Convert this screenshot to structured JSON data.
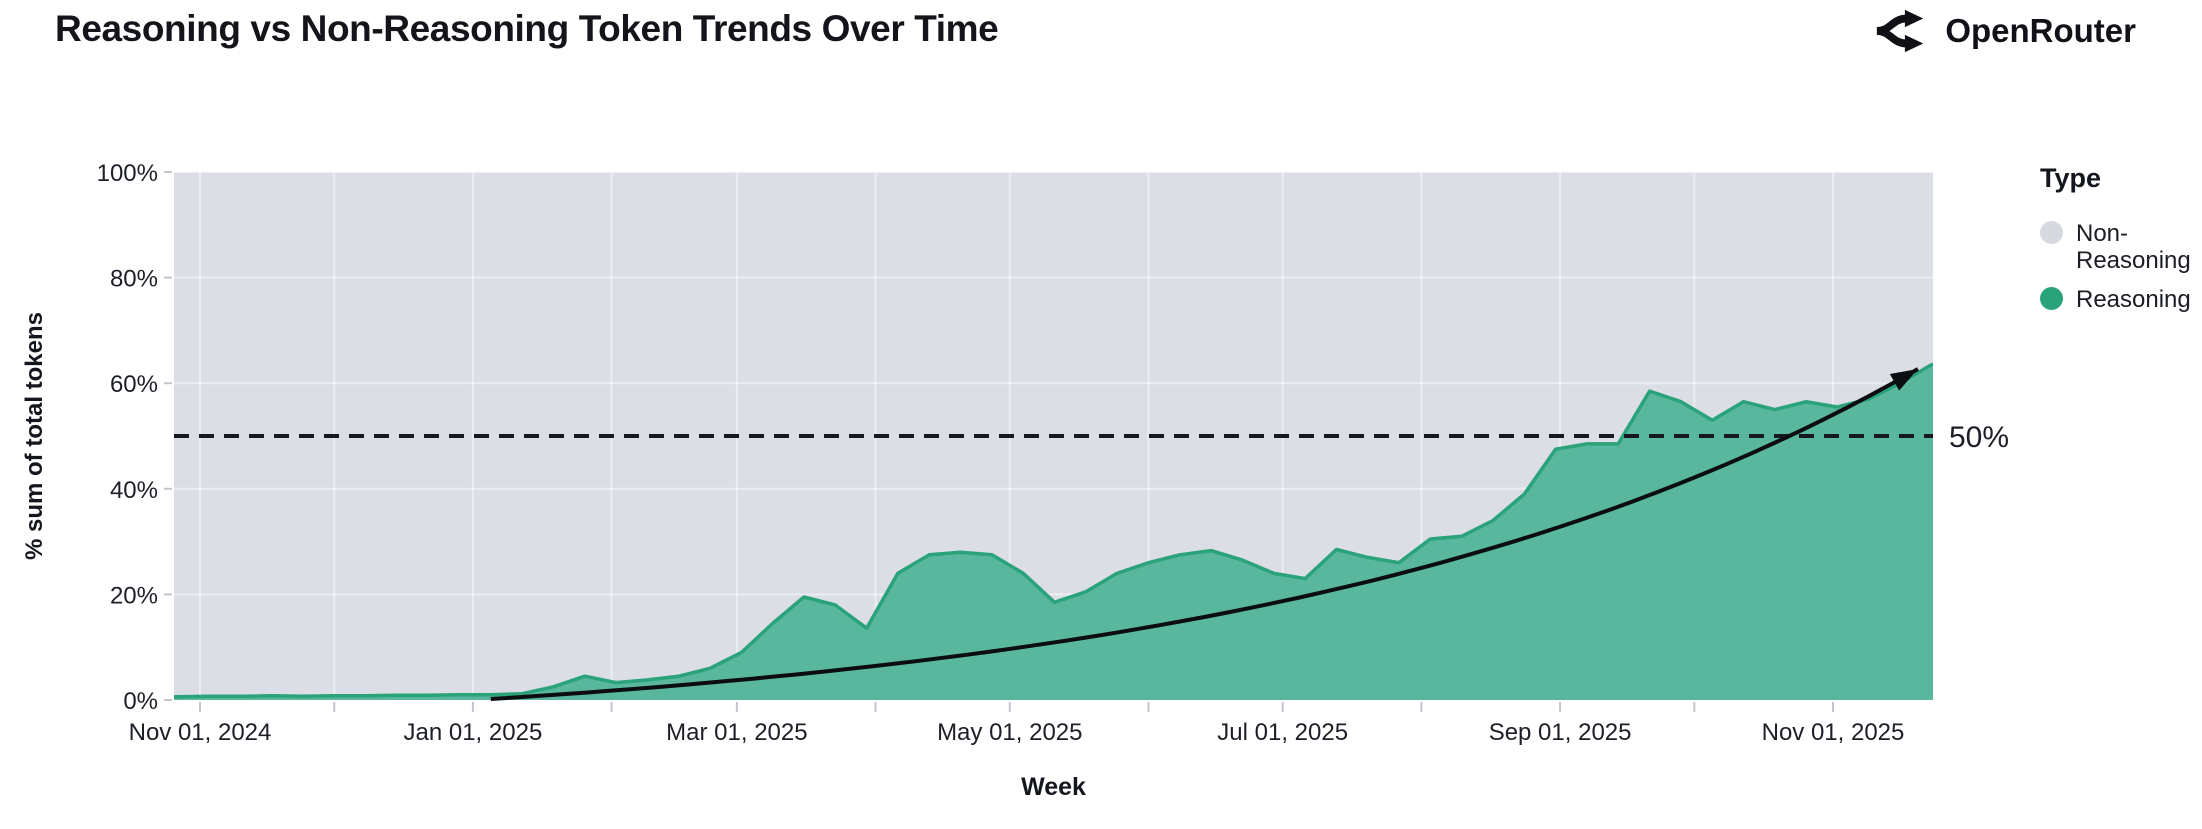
{
  "header": {
    "title": "Reasoning vs Non-Reasoning Token Trends Over Time",
    "brand": "OpenRouter"
  },
  "legend": {
    "title": "Type",
    "items": [
      {
        "label": "Non-Reasoning",
        "color": "#d6d9e0"
      },
      {
        "label": "Reasoning",
        "color": "#2aa27a"
      }
    ]
  },
  "reference_label": "50%",
  "colors": {
    "plot_background": "#dbdee5",
    "reasoning_fill": "#58b79d",
    "reasoning_line": "#2aa27a",
    "non_reasoning": "#d6d9e0",
    "ink": "#14171d",
    "grid": "rgba(255,255,255,0.45)",
    "tick": "#c3c6cd",
    "label": "#1c1f27"
  },
  "chart_data": {
    "type": "area",
    "stacked_to_100_percent": true,
    "title": "Reasoning vs Non-Reasoning Token Trends Over Time",
    "xlabel": "Week",
    "ylabel": "% sum of total tokens",
    "ylim": [
      0,
      100
    ],
    "y_ticks_pct": [
      0,
      20,
      40,
      60,
      80,
      100
    ],
    "y_tick_labels": [
      "0%",
      "20%",
      "40%",
      "60%",
      "80%",
      "100%"
    ],
    "x_ticks": [
      {
        "date": "2024-11-01",
        "label": "Nov 01, 2024"
      },
      {
        "date": "2025-01-01",
        "label": "Jan 01, 2025"
      },
      {
        "date": "2025-03-01",
        "label": "Mar 01, 2025"
      },
      {
        "date": "2025-05-01",
        "label": "May 01, 2025"
      },
      {
        "date": "2025-07-01",
        "label": "Jul 01, 2025"
      },
      {
        "date": "2025-09-01",
        "label": "Sep 01, 2025"
      },
      {
        "date": "2025-11-01",
        "label": "Nov 01, 2025"
      }
    ],
    "x_minor_tick_dates": [
      "2024-11-01",
      "2024-12-01",
      "2025-01-01",
      "2025-02-01",
      "2025-03-01",
      "2025-04-01",
      "2025-05-01",
      "2025-06-01",
      "2025-07-01",
      "2025-08-01",
      "2025-09-01",
      "2025-10-01",
      "2025-11-01"
    ],
    "legend_position": "right",
    "grid": true,
    "series_names": [
      "Non-Reasoning",
      "Reasoning"
    ],
    "weeks": [
      "2024-10-27",
      "2024-11-03",
      "2024-11-10",
      "2024-11-17",
      "2024-11-24",
      "2024-12-01",
      "2024-12-08",
      "2024-12-15",
      "2024-12-22",
      "2024-12-29",
      "2025-01-05",
      "2025-01-12",
      "2025-01-19",
      "2025-01-26",
      "2025-02-02",
      "2025-02-09",
      "2025-02-16",
      "2025-02-23",
      "2025-03-02",
      "2025-03-09",
      "2025-03-16",
      "2025-03-23",
      "2025-03-30",
      "2025-04-06",
      "2025-04-13",
      "2025-04-20",
      "2025-04-27",
      "2025-05-04",
      "2025-05-11",
      "2025-05-18",
      "2025-05-25",
      "2025-06-01",
      "2025-06-08",
      "2025-06-15",
      "2025-06-22",
      "2025-06-29",
      "2025-07-06",
      "2025-07-13",
      "2025-07-20",
      "2025-07-27",
      "2025-08-03",
      "2025-08-10",
      "2025-08-17",
      "2025-08-24",
      "2025-08-31",
      "2025-09-07",
      "2025-09-14",
      "2025-09-21",
      "2025-09-28",
      "2025-10-05",
      "2025-10-12",
      "2025-10-19",
      "2025-10-26",
      "2025-11-02",
      "2025-11-09",
      "2025-11-16",
      "2025-11-23"
    ],
    "reasoning_pct": [
      0.6,
      0.7,
      0.7,
      0.8,
      0.7,
      0.8,
      0.8,
      0.9,
      0.9,
      1.0,
      1.0,
      1.2,
      2.5,
      4.5,
      3.3,
      3.8,
      4.5,
      6.0,
      9.0,
      14.5,
      19.5,
      18.0,
      13.6,
      24.0,
      27.5,
      28.0,
      27.5,
      24.0,
      18.5,
      20.5,
      24.0,
      26.0,
      27.5,
      28.3,
      26.5,
      24.0,
      23.0,
      28.5,
      27.0,
      26.0,
      30.5,
      31.0,
      34.0,
      39.0,
      47.5,
      48.5,
      48.5,
      58.5,
      56.5,
      53.0,
      56.5,
      55.0,
      56.5,
      55.5,
      57.0,
      60.0,
      63.5
    ],
    "non_reasoning_note": "Non-Reasoning share = 100% minus Reasoning share (stacked to 100%)",
    "reference_line": {
      "value_pct": 50,
      "label": "50%",
      "style": "dashed"
    },
    "trend_arrow": {
      "shape": "exponential",
      "start_date": "2025-01-05",
      "end_date": "2025-11-20",
      "start_pct": 0,
      "end_pct": 62.5
    }
  }
}
